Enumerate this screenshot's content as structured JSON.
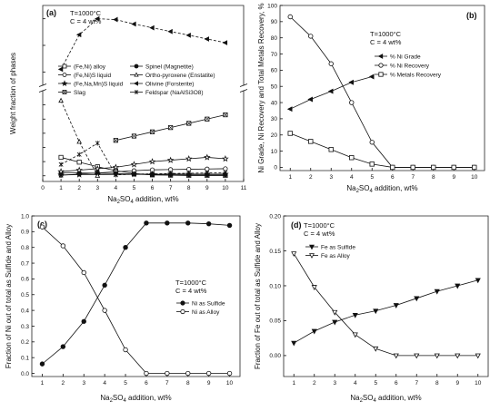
{
  "chart_data": [
    {
      "type": "line",
      "panel_label": "(a)",
      "annotations": [
        "T=1000°C",
        "C = 4 wt%"
      ],
      "xlabel_pre": "Na",
      "xlabel_sub1": "2",
      "xlabel_mid": "SO",
      "xlabel_sub2": "4",
      "xlabel_post": " addition, wt%",
      "ylabel": "Weight fraction of phases",
      "xlim": [
        0,
        11
      ],
      "xticks": [
        0,
        1,
        2,
        3,
        4,
        5,
        6,
        7,
        8,
        9,
        10,
        11
      ],
      "upper_ylim": [
        0.55,
        0.85
      ],
      "lower_ylim": [
        -0.02,
        0.3
      ],
      "lower_yticks": [
        0.0,
        0.05,
        0.1,
        0.15,
        0.2,
        0.25
      ],
      "series": [
        {
          "name": "(Fe,Ni) alloy",
          "marker": "square-open",
          "dash": "solid",
          "x": [
            1,
            2,
            3,
            4,
            5,
            6,
            7,
            8,
            9,
            10
          ],
          "y": [
            0.065,
            0.048,
            0.032,
            0.018,
            0.008,
            0.003,
            0.002,
            0.001,
            0.001,
            0.001
          ]
        },
        {
          "name": "(Fe,Ni)S liquid",
          "marker": "circle-open",
          "dash": "solid",
          "x": [
            1,
            2,
            3,
            4,
            5,
            6,
            7,
            8,
            9,
            10
          ],
          "y": [
            0.002,
            0.006,
            0.01,
            0.014,
            0.018,
            0.021,
            0.022,
            0.023,
            0.024,
            0.025
          ]
        },
        {
          "name": "(Fe,Na,Mn)S liquid",
          "marker": "star-solid",
          "dash": "solid",
          "x": [
            1,
            2,
            3,
            4,
            5,
            6,
            7,
            8,
            9,
            10
          ],
          "y": [
            0.003,
            0.004,
            0.004,
            0.005,
            0.005,
            0.005,
            0.006,
            0.006,
            0.006,
            0.006
          ]
        },
        {
          "name": "Slag",
          "marker": "square-cross",
          "dash": "solid",
          "x": [
            4,
            5,
            6,
            7,
            8,
            9,
            10
          ],
          "y": [
            0.125,
            0.14,
            0.155,
            0.17,
            0.185,
            0.2,
            0.215
          ]
        },
        {
          "name": "Spinel (Magnetite)",
          "marker": "circle-solid",
          "dash": "solid",
          "x": [
            1,
            2,
            3,
            4,
            5,
            6,
            7,
            8,
            9,
            10
          ],
          "y": [
            0.01,
            0.01,
            0.009,
            0.008,
            0.006,
            0.004,
            0.004,
            0.004,
            0.004,
            0.004
          ]
        },
        {
          "name": "Ortho-pyroxene (Enstatite)",
          "marker": "triangle-open",
          "dash": "dash",
          "x": [
            1,
            2,
            3
          ],
          "y": [
            0.265,
            0.12,
            0.0
          ]
        },
        {
          "name": "Olivine (Forsterite)",
          "marker": "triangle-left-solid",
          "dash": "dash",
          "x": [
            1,
            2,
            3,
            4,
            5,
            6,
            7,
            8,
            9,
            10
          ],
          "y": [
            0.61,
            0.74,
            0.8,
            0.797,
            0.78,
            0.766,
            0.752,
            0.738,
            0.724,
            0.71
          ]
        },
        {
          "name": "Feldspar (NaAlSi3O8)",
          "marker": "x-cross",
          "dash": "dash",
          "x": [
            1,
            2,
            3,
            4,
            5,
            6,
            7,
            8,
            9,
            10
          ],
          "y": [
            0.04,
            0.075,
            0.115,
            0.003,
            0.006,
            0.007,
            0.008,
            0.009,
            0.01,
            0.011
          ]
        },
        {
          "name": "",
          "marker": "star-open",
          "dash": "solid",
          "x": [
            1,
            2,
            3,
            4,
            5,
            6,
            7,
            8,
            9,
            10
          ],
          "y": [
            0.015,
            0.02,
            0.025,
            0.03,
            0.04,
            0.05,
            0.055,
            0.06,
            0.065,
            0.06
          ]
        }
      ]
    },
    {
      "type": "line",
      "panel_label": "(b)",
      "annotations": [
        "T=1000°C",
        "C = 4 wt%"
      ],
      "xlabel_pre": "Na",
      "xlabel_sub1": "2",
      "xlabel_mid": "SO",
      "xlabel_sub2": "4",
      "xlabel_post": " addition, wt%",
      "ylabel": "Ni Grade, Ni Recovery and Total Metals Recovery, %",
      "xlim": [
        0.5,
        10.5
      ],
      "ylim": [
        -2,
        100
      ],
      "xticks": [
        1,
        2,
        3,
        4,
        5,
        6,
        7,
        8,
        9,
        10
      ],
      "yticks": [
        0,
        10,
        20,
        30,
        40,
        50,
        60,
        70,
        80,
        90,
        100
      ],
      "series": [
        {
          "name": "% Ni Grade",
          "marker": "triangle-left-solid",
          "x": [
            1,
            2,
            3,
            4,
            5
          ],
          "y": [
            36,
            42,
            47,
            52.5,
            56
          ]
        },
        {
          "name": "% Ni Recovery",
          "marker": "circle-open",
          "x": [
            1,
            2,
            3,
            4,
            5,
            6,
            7,
            8,
            9,
            10
          ],
          "y": [
            93,
            81,
            64,
            40,
            15.5,
            0,
            0,
            0,
            0,
            0
          ]
        },
        {
          "name": "% Metals Recovery",
          "marker": "square-open",
          "x": [
            1,
            2,
            3,
            4,
            5,
            6,
            7,
            8,
            9,
            10
          ],
          "y": [
            21,
            16,
            11,
            6,
            2,
            0,
            0,
            0,
            0,
            0
          ]
        }
      ]
    },
    {
      "type": "line",
      "panel_label": "(c)",
      "annotations": [
        "T=1000°C",
        "C = 4 wt%"
      ],
      "xlabel_pre": "Na",
      "xlabel_sub1": "2",
      "xlabel_mid": "SO",
      "xlabel_sub2": "4",
      "xlabel_post": " addition, wt%",
      "ylabel": "Fraction of Ni out of total as Sulfide and Alloy",
      "xlim": [
        0.5,
        10.5
      ],
      "ylim": [
        -0.02,
        1.0
      ],
      "xticks": [
        1,
        2,
        3,
        4,
        5,
        6,
        7,
        8,
        9,
        10
      ],
      "yticks": [
        "0.0",
        "0.1",
        "0.2",
        "0.3",
        "0.4",
        "0.5",
        "0.6",
        "0.7",
        "0.8",
        "0.9",
        "1.0"
      ],
      "series": [
        {
          "name": "Ni as Sulfide",
          "marker": "circle-solid",
          "x": [
            1,
            2,
            3,
            4,
            5,
            6,
            7,
            8,
            9,
            10
          ],
          "y": [
            0.06,
            0.17,
            0.33,
            0.56,
            0.8,
            0.955,
            0.955,
            0.955,
            0.95,
            0.94
          ]
        },
        {
          "name": "Ni as Alloy",
          "marker": "circle-open",
          "x": [
            1,
            2,
            3,
            4,
            5,
            6,
            7,
            8,
            9,
            10
          ],
          "y": [
            0.93,
            0.81,
            0.64,
            0.4,
            0.15,
            0.0,
            0.0,
            0.0,
            0.0,
            0.0
          ]
        }
      ]
    },
    {
      "type": "line",
      "panel_label": "(d)",
      "annotations": [
        "T=1000°C",
        "C = 4 wt%"
      ],
      "xlabel_pre": "Na",
      "xlabel_sub1": "2",
      "xlabel_mid": "SO",
      "xlabel_sub2": "4",
      "xlabel_post": " addition, wt%",
      "ylabel": "Fraction of Fe out of total as Sulfide and Alloy",
      "xlim": [
        0.5,
        10.5
      ],
      "ylim": [
        -0.03,
        0.2
      ],
      "xticks": [
        1,
        2,
        3,
        4,
        5,
        6,
        7,
        8,
        9,
        10
      ],
      "yticks": [
        "0.00",
        "0.05",
        "0.10",
        "0.15",
        "0.20"
      ],
      "series": [
        {
          "name": "Fe as Sulfide",
          "marker": "triangle-down-solid",
          "x": [
            1,
            2,
            3,
            4,
            5,
            6,
            7,
            8,
            9,
            10
          ],
          "y": [
            0.018,
            0.035,
            0.048,
            0.058,
            0.064,
            0.072,
            0.082,
            0.092,
            0.1,
            0.108
          ]
        },
        {
          "name": "Fe as Alloy",
          "marker": "triangle-down-open",
          "x": [
            1,
            2,
            3,
            4,
            5,
            6,
            7,
            8,
            9,
            10
          ],
          "y": [
            0.146,
            0.098,
            0.062,
            0.03,
            0.01,
            0.0,
            0.0,
            0.0,
            0.0,
            0.0
          ]
        }
      ]
    }
  ]
}
